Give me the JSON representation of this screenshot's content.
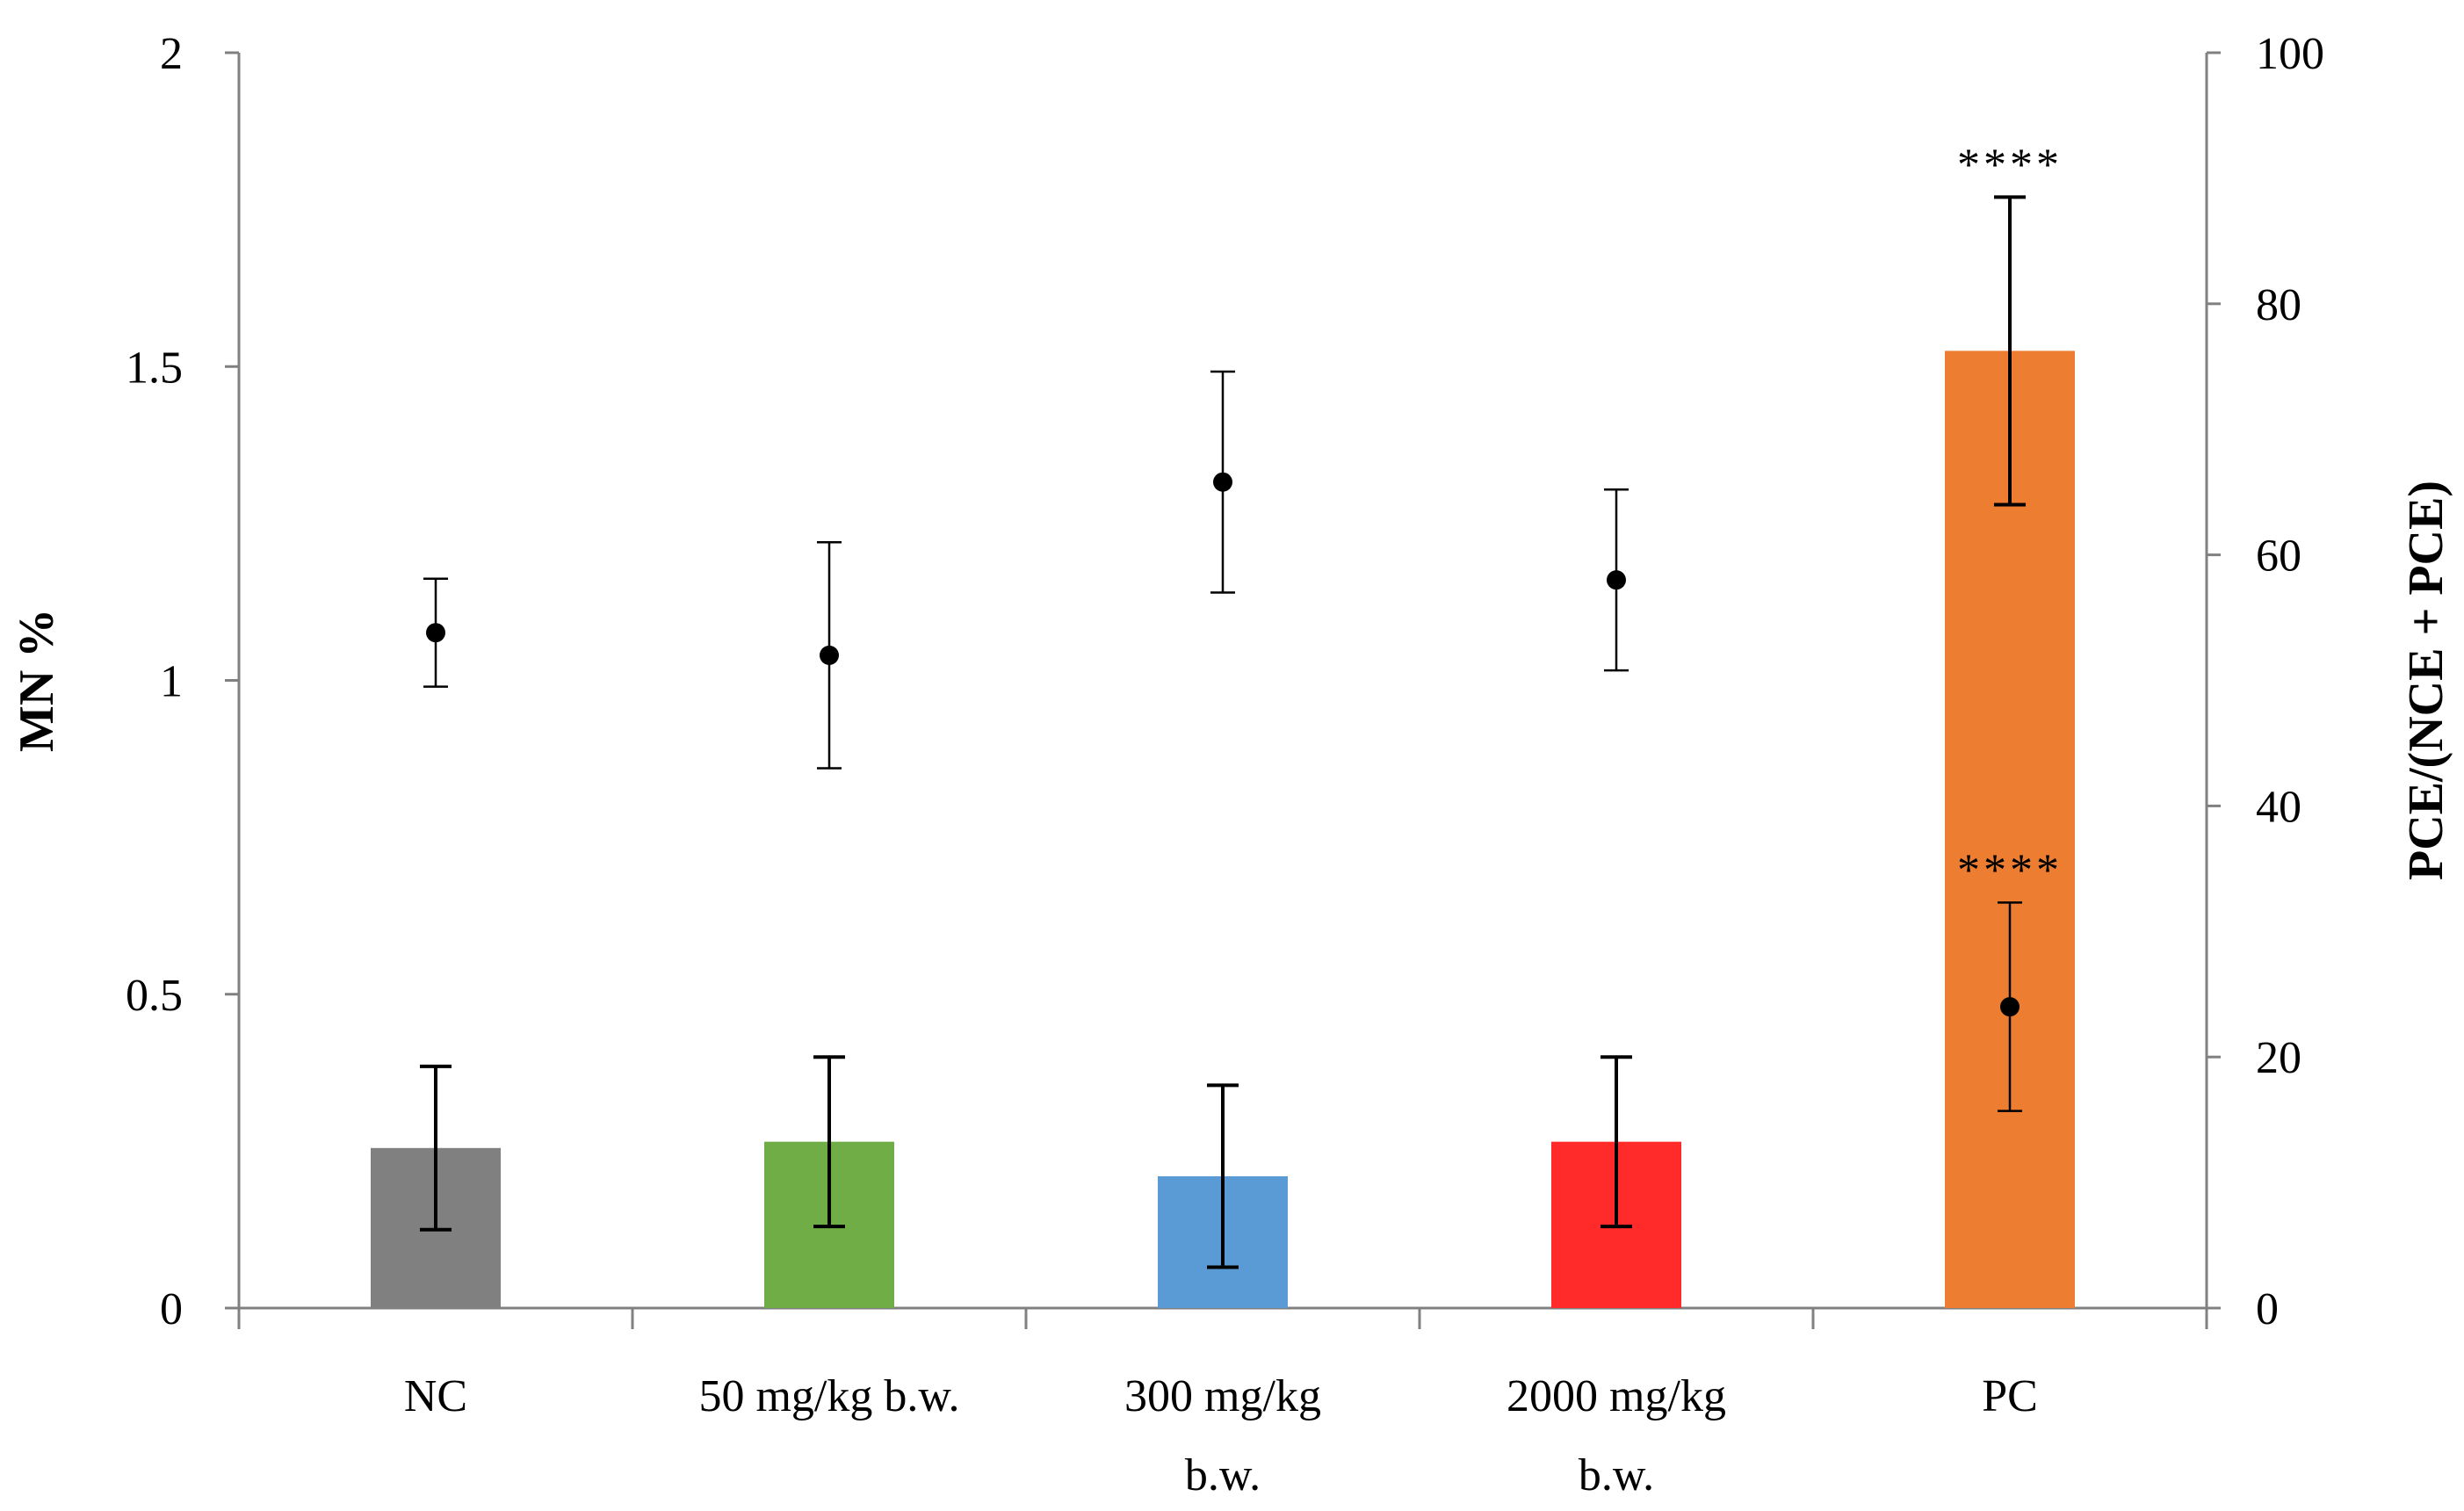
{
  "chart_data": {
    "type": "bar",
    "categories": [
      [
        "NC"
      ],
      [
        "50 mg/kg  b.w."
      ],
      [
        "300 mg/kg",
        "b.w."
      ],
      [
        "2000 mg/kg",
        "b.w."
      ],
      [
        "PC"
      ]
    ],
    "colors": [
      "#808080",
      "#70ad47",
      "#5b9bd5",
      "#ff2a2a",
      "#ed7d31"
    ],
    "left_axis": {
      "label": "MN %",
      "ylim": [
        0,
        2
      ],
      "ticks": [
        0,
        0.5,
        1,
        1.5,
        2
      ],
      "tick_labels": [
        "0",
        "0.5",
        "1",
        "1.5",
        "2"
      ]
    },
    "right_axis": {
      "label": "PCE/(NCE + PCE)",
      "ylim": [
        0,
        100
      ],
      "ticks": [
        0,
        20,
        40,
        60,
        80,
        100
      ],
      "tick_labels": [
        "0",
        "20",
        "40",
        "60",
        "80",
        "100"
      ]
    },
    "series": [
      {
        "kind": "bar",
        "axis": "left",
        "values": [
          0.255,
          0.265,
          0.21,
          0.265,
          1.525
        ],
        "errors": [
          0.13,
          0.135,
          0.145,
          0.135,
          0.245
        ]
      },
      {
        "kind": "scatter",
        "axis": "right",
        "values": [
          53.8,
          52.0,
          65.8,
          58.0,
          24.0
        ],
        "errors": [
          4.3,
          9.0,
          8.8,
          7.2,
          8.3
        ]
      }
    ],
    "annotations": [
      {
        "category_index": 4,
        "series_index": 0,
        "text": "****"
      },
      {
        "category_index": 4,
        "series_index": 1,
        "text": "****"
      }
    ]
  }
}
